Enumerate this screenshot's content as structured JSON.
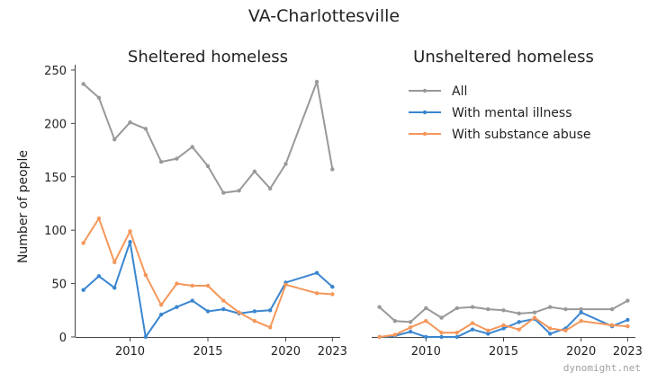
{
  "chart_data": {
    "type": "line",
    "title": "VA-Charlottesville",
    "ylabel": "Number of people",
    "ylim": [
      0,
      255
    ],
    "xlim": [
      2006.5,
      2023.5
    ],
    "x_ticks": [
      2010,
      2015,
      2020,
      2023
    ],
    "y_ticks": [
      0,
      50,
      100,
      150,
      200,
      250
    ],
    "grid": false,
    "legend_position": "top-right of second panel",
    "watermark": "dynomight.net",
    "panels": [
      {
        "title": "Sheltered homeless",
        "series": [
          {
            "name": "All",
            "color": "#999999",
            "x": [
              2007,
              2008,
              2009,
              2010,
              2011,
              2012,
              2013,
              2014,
              2015,
              2016,
              2017,
              2018,
              2019,
              2020,
              2022,
              2023
            ],
            "values": [
              237,
              224,
              185,
              201,
              195,
              164,
              167,
              178,
              160,
              135,
              137,
              155,
              139,
              162,
              239,
              157
            ]
          },
          {
            "name": "With mental illness",
            "color": "#3a86d0",
            "x": [
              2007,
              2008,
              2009,
              2010,
              2011,
              2012,
              2013,
              2014,
              2015,
              2016,
              2017,
              2018,
              2019,
              2020,
              2022,
              2023
            ],
            "values": [
              44,
              57,
              46,
              89,
              0,
              21,
              28,
              34,
              24,
              26,
              22,
              24,
              25,
              51,
              60,
              47
            ]
          },
          {
            "name": "With substance abuse",
            "color": "#f5975a",
            "x": [
              2007,
              2008,
              2009,
              2010,
              2011,
              2012,
              2013,
              2014,
              2015,
              2016,
              2017,
              2018,
              2019,
              2020,
              2022,
              2023
            ],
            "values": [
              88,
              111,
              70,
              99,
              58,
              30,
              50,
              48,
              48,
              34,
              23,
              15,
              9,
              49,
              41,
              40
            ]
          }
        ]
      },
      {
        "title": "Unsheltered homeless",
        "series": [
          {
            "name": "All",
            "color": "#999999",
            "x": [
              2007,
              2008,
              2009,
              2010,
              2011,
              2012,
              2013,
              2014,
              2015,
              2016,
              2017,
              2018,
              2019,
              2020,
              2022,
              2023
            ],
            "values": [
              28,
              15,
              14,
              27,
              18,
              27,
              28,
              26,
              25,
              22,
              23,
              28,
              26,
              26,
              26,
              34
            ]
          },
          {
            "name": "With mental illness",
            "color": "#3a86d0",
            "x": [
              2007,
              2008,
              2009,
              2010,
              2011,
              2012,
              2013,
              2014,
              2015,
              2016,
              2017,
              2018,
              2019,
              2020,
              2022,
              2023
            ],
            "values": [
              0,
              1,
              5,
              0,
              0,
              0,
              7,
              3,
              8,
              14,
              17,
              3,
              8,
              23,
              10,
              16
            ]
          },
          {
            "name": "With substance abuse",
            "color": "#f5975a",
            "x": [
              2007,
              2008,
              2009,
              2010,
              2011,
              2012,
              2013,
              2014,
              2015,
              2016,
              2017,
              2018,
              2019,
              2020,
              2022,
              2023
            ],
            "values": [
              0,
              2,
              9,
              15,
              4,
              4,
              13,
              6,
              11,
              7,
              18,
              8,
              6,
              15,
              11,
              10
            ]
          }
        ]
      }
    ]
  }
}
